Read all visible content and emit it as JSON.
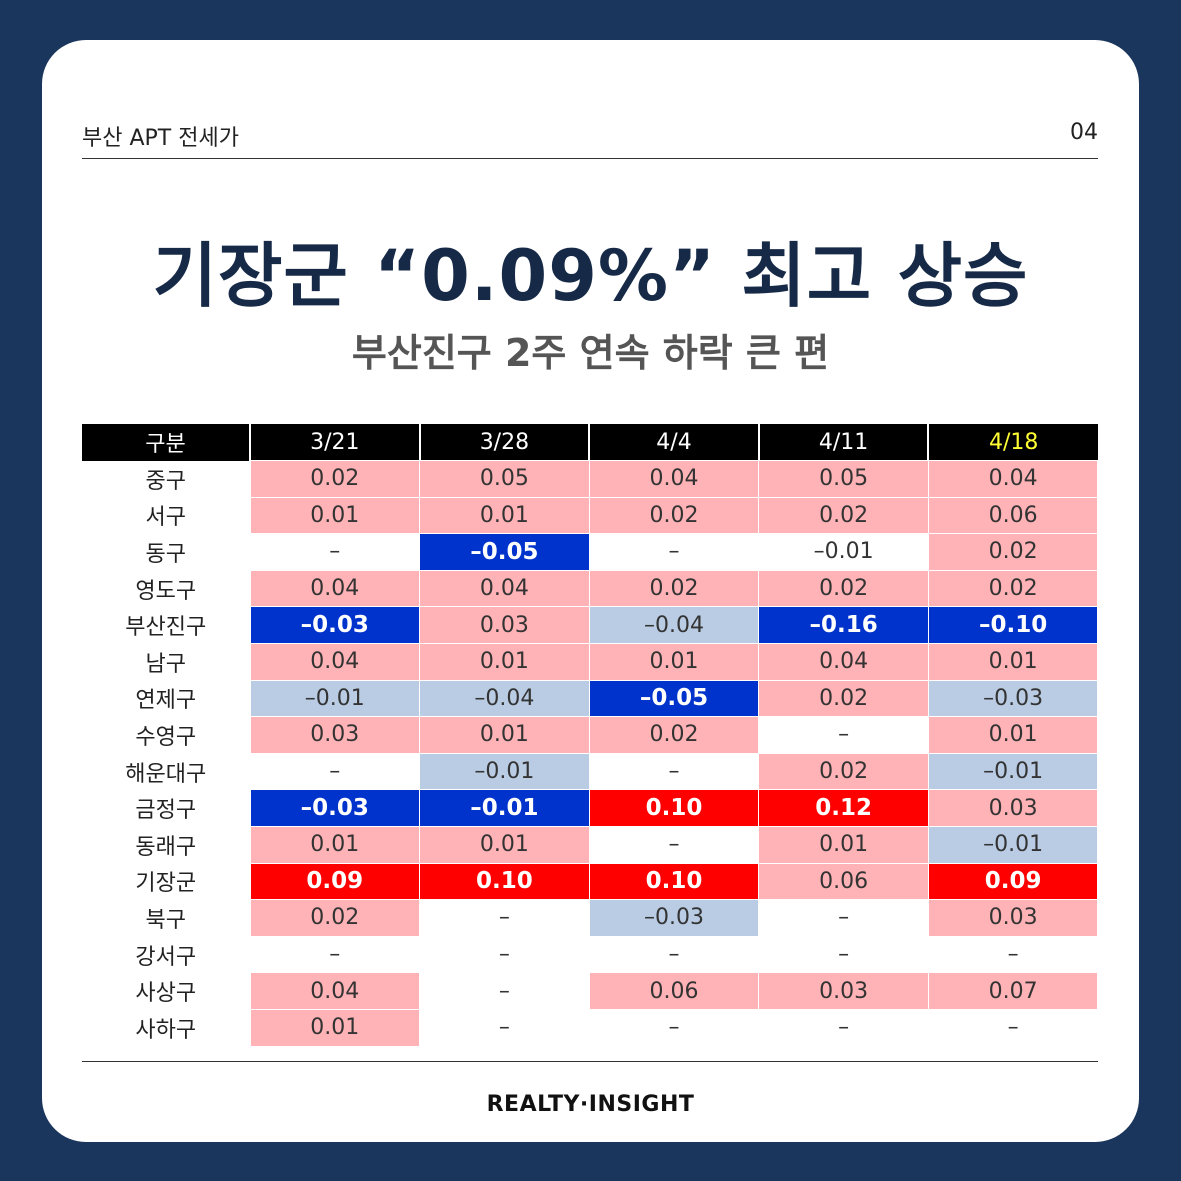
{
  "header": {
    "section": "부산 APT 전세가",
    "page": "04"
  },
  "title": "기장군 “0.09%” 최고 상승",
  "subtitle": "부산진구 2주 연속 하락 큰 편",
  "brand": "REALTY·INSIGHT",
  "colors": {
    "background": "#1b365d",
    "positive": "#ffb3b6",
    "negative": "#b9cce4",
    "strong_negative": "#0033cc",
    "strong_positive": "#ff0000",
    "highlight_header": "#ffff33"
  },
  "chart_data": {
    "type": "table",
    "corner": "구분",
    "columns": [
      "3/21",
      "3/28",
      "4/4",
      "4/11",
      "4/18"
    ],
    "highlight_column": "4/18",
    "rows": [
      {
        "label": "중구",
        "values": [
          "0.02",
          "0.05",
          "0.04",
          "0.05",
          "0.04"
        ],
        "styles": [
          "pos",
          "pos",
          "pos",
          "pos",
          "pos"
        ]
      },
      {
        "label": "서구",
        "values": [
          "0.01",
          "0.01",
          "0.02",
          "0.02",
          "0.06"
        ],
        "styles": [
          "pos",
          "pos",
          "pos",
          "pos",
          "pos"
        ]
      },
      {
        "label": "동구",
        "values": [
          "–",
          "–0.05",
          "–",
          "–0.01",
          "0.02"
        ],
        "styles": [
          "none",
          "sneg",
          "none",
          "none",
          "pos"
        ]
      },
      {
        "label": "영도구",
        "values": [
          "0.04",
          "0.04",
          "0.02",
          "0.02",
          "0.02"
        ],
        "styles": [
          "pos",
          "pos",
          "pos",
          "pos",
          "pos"
        ]
      },
      {
        "label": "부산진구",
        "values": [
          "–0.03",
          "0.03",
          "–0.04",
          "–0.16",
          "–0.10"
        ],
        "styles": [
          "sneg",
          "pos",
          "neg",
          "sneg",
          "sneg"
        ]
      },
      {
        "label": "남구",
        "values": [
          "0.04",
          "0.01",
          "0.01",
          "0.04",
          "0.01"
        ],
        "styles": [
          "pos",
          "pos",
          "pos",
          "pos",
          "pos"
        ]
      },
      {
        "label": "연제구",
        "values": [
          "–0.01",
          "–0.04",
          "–0.05",
          "0.02",
          "–0.03"
        ],
        "styles": [
          "neg",
          "neg",
          "sneg",
          "pos",
          "neg"
        ]
      },
      {
        "label": "수영구",
        "values": [
          "0.03",
          "0.01",
          "0.02",
          "–",
          "0.01"
        ],
        "styles": [
          "pos",
          "pos",
          "pos",
          "none",
          "pos"
        ]
      },
      {
        "label": "해운대구",
        "values": [
          "–",
          "–0.01",
          "–",
          "0.02",
          "–0.01"
        ],
        "styles": [
          "none",
          "neg",
          "none",
          "pos",
          "neg"
        ]
      },
      {
        "label": "금정구",
        "values": [
          "–0.03",
          "–0.01",
          "0.10",
          "0.12",
          "0.03"
        ],
        "styles": [
          "sneg",
          "sneg",
          "spos",
          "spos",
          "pos"
        ]
      },
      {
        "label": "동래구",
        "values": [
          "0.01",
          "0.01",
          "–",
          "0.01",
          "–0.01"
        ],
        "styles": [
          "pos",
          "pos",
          "none",
          "pos",
          "neg"
        ]
      },
      {
        "label": "기장군",
        "values": [
          "0.09",
          "0.10",
          "0.10",
          "0.06",
          "0.09"
        ],
        "styles": [
          "spos",
          "spos",
          "spos",
          "pos",
          "spos"
        ]
      },
      {
        "label": "북구",
        "values": [
          "0.02",
          "–",
          "–0.03",
          "–",
          "0.03"
        ],
        "styles": [
          "pos",
          "none",
          "neg",
          "none",
          "pos"
        ]
      },
      {
        "label": "강서구",
        "values": [
          "–",
          "–",
          "–",
          "–",
          "–"
        ],
        "styles": [
          "none",
          "none",
          "none",
          "none",
          "none"
        ]
      },
      {
        "label": "사상구",
        "values": [
          "0.04",
          "–",
          "0.06",
          "0.03",
          "0.07"
        ],
        "styles": [
          "pos",
          "none",
          "pos",
          "pos",
          "pos"
        ]
      },
      {
        "label": "사하구",
        "values": [
          "0.01",
          "–",
          "–",
          "–",
          "–"
        ],
        "styles": [
          "pos",
          "none",
          "none",
          "none",
          "none"
        ]
      }
    ]
  }
}
